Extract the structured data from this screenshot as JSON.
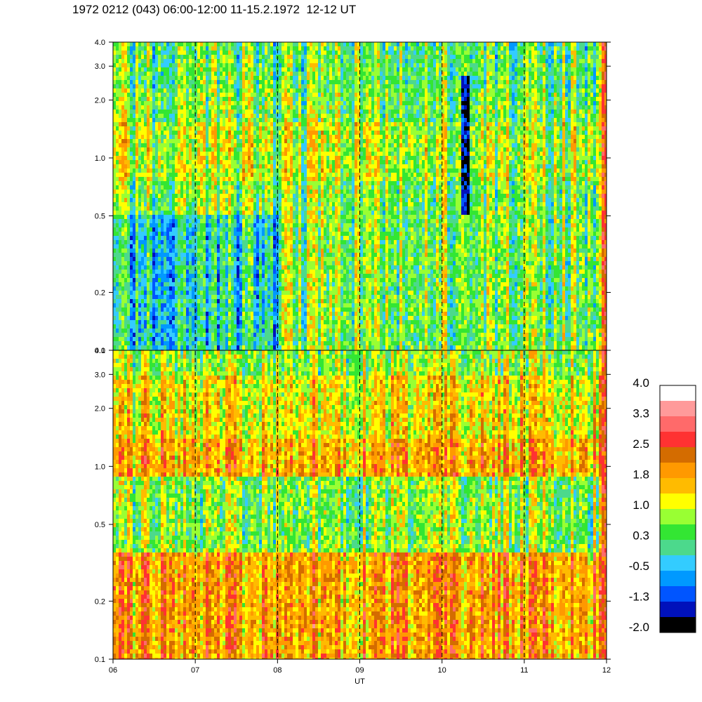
{
  "title": "1972 0212 (043) 06:00-12:00 11-15.2.1972  12-12 UT",
  "chart_data": {
    "type": "heatmap",
    "title": "1972 0212 (043) 06:00-12:00 11-15.2.1972  12-12 UT",
    "xlabel": "UT",
    "x_ticks": [
      "06",
      "07",
      "08",
      "09",
      "10",
      "11",
      "12"
    ],
    "x_range": [
      6,
      12
    ],
    "y_scale": "log",
    "y_range": [
      0.1,
      4.0
    ],
    "y_ticks": [
      "0.1",
      "0.2",
      "0.5",
      "1.0",
      "2.0",
      "3.0",
      "4.0"
    ],
    "vertical_dashed_lines_at": [
      7,
      8,
      9,
      10,
      11
    ],
    "panels": [
      {
        "name": "upper",
        "dominant_range": [
          -0.5,
          1.0
        ],
        "dominant_colors": [
          "green",
          "light green",
          "teal"
        ]
      },
      {
        "name": "lower",
        "dominant_range": [
          0.3,
          2.5
        ],
        "dominant_colors": [
          "orange",
          "amber",
          "yellow",
          "green"
        ]
      }
    ],
    "colorbar": {
      "labels": [
        "4.0",
        "3.3",
        "2.5",
        "1.8",
        "1.0",
        "0.3",
        "-0.5",
        "-1.3",
        "-2.0"
      ],
      "colors": [
        "#ffffff",
        "#ff9a9a",
        "#ff6a6a",
        "#ff3232",
        "#d46c00",
        "#ff9900",
        "#ffbb00",
        "#ffff00",
        "#99ff33",
        "#33e633",
        "#4cd98c",
        "#33ccff",
        "#0099ff",
        "#0055ff",
        "#0011bb",
        "#000000"
      ]
    }
  }
}
